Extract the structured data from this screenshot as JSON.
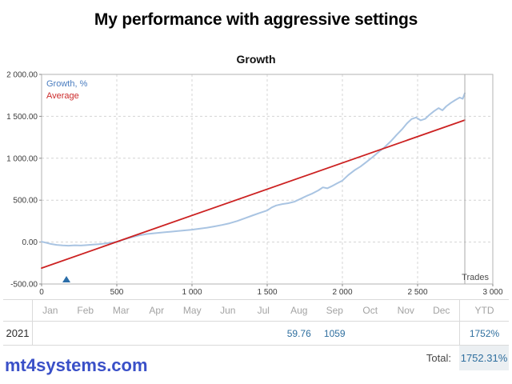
{
  "header": {
    "title": "My performance with aggressive settings"
  },
  "chart": {
    "title": "Growth",
    "legend": [
      {
        "label": "Growth, %",
        "color": "#4a7dc0"
      },
      {
        "label": "Average",
        "color": "#cc2b2b"
      }
    ],
    "x_axis_unit": "Trades"
  },
  "chart_data": {
    "type": "line",
    "title": "Growth",
    "xlabel": "Trades",
    "ylabel": "Growth, %",
    "xlim": [
      0,
      3000
    ],
    "ylim": [
      -500,
      2000
    ],
    "grid": true,
    "legend_position": "top-left",
    "x_ticks": [
      0,
      500,
      1000,
      1500,
      2000,
      2500,
      3000
    ],
    "x_tick_labels": [
      "0",
      "500",
      "1 000",
      "1 500",
      "2 000",
      "2 500",
      "3 000"
    ],
    "y_ticks": [
      -500,
      0,
      500,
      1000,
      1500,
      2000
    ],
    "y_tick_labels": [
      "-500.00",
      "0.00",
      "500.00",
      "1 000.00",
      "1 500.00",
      "2 000.00"
    ],
    "data_end_x": 2814,
    "series": [
      {
        "name": "Growth, %",
        "color": "#a9c4e2",
        "width": 2,
        "points": [
          [
            0,
            5
          ],
          [
            30,
            -8
          ],
          [
            60,
            -22
          ],
          [
            100,
            -33
          ],
          [
            140,
            -40
          ],
          [
            180,
            -43
          ],
          [
            220,
            -38
          ],
          [
            260,
            -41
          ],
          [
            300,
            -36
          ],
          [
            340,
            -31
          ],
          [
            380,
            -26
          ],
          [
            420,
            -17
          ],
          [
            460,
            -8
          ],
          [
            500,
            3
          ],
          [
            550,
            32
          ],
          [
            600,
            58
          ],
          [
            650,
            80
          ],
          [
            700,
            96
          ],
          [
            740,
            104
          ],
          [
            780,
            111
          ],
          [
            820,
            117
          ],
          [
            860,
            124
          ],
          [
            900,
            131
          ],
          [
            950,
            139
          ],
          [
            1000,
            148
          ],
          [
            1050,
            159
          ],
          [
            1100,
            172
          ],
          [
            1150,
            187
          ],
          [
            1200,
            204
          ],
          [
            1250,
            224
          ],
          [
            1300,
            251
          ],
          [
            1350,
            283
          ],
          [
            1400,
            316
          ],
          [
            1450,
            347
          ],
          [
            1500,
            377
          ],
          [
            1530,
            413
          ],
          [
            1560,
            437
          ],
          [
            1600,
            453
          ],
          [
            1640,
            464
          ],
          [
            1680,
            481
          ],
          [
            1720,
            514
          ],
          [
            1760,
            549
          ],
          [
            1800,
            579
          ],
          [
            1840,
            616
          ],
          [
            1870,
            653
          ],
          [
            1900,
            641
          ],
          [
            1930,
            667
          ],
          [
            1960,
            697
          ],
          [
            2000,
            734
          ],
          [
            2040,
            801
          ],
          [
            2080,
            856
          ],
          [
            2120,
            901
          ],
          [
            2160,
            956
          ],
          [
            2200,
            1012
          ],
          [
            2240,
            1073
          ],
          [
            2280,
            1131
          ],
          [
            2320,
            1199
          ],
          [
            2360,
            1278
          ],
          [
            2400,
            1352
          ],
          [
            2430,
            1417
          ],
          [
            2460,
            1468
          ],
          [
            2490,
            1487
          ],
          [
            2520,
            1452
          ],
          [
            2550,
            1469
          ],
          [
            2580,
            1519
          ],
          [
            2610,
            1563
          ],
          [
            2640,
            1598
          ],
          [
            2665,
            1572
          ],
          [
            2690,
            1618
          ],
          [
            2720,
            1659
          ],
          [
            2750,
            1694
          ],
          [
            2780,
            1724
          ],
          [
            2800,
            1709
          ],
          [
            2814,
            1776
          ]
        ]
      },
      {
        "name": "Average",
        "color": "#cc2222",
        "width": 1.8,
        "points": [
          [
            0,
            -310
          ],
          [
            2814,
            1455
          ]
        ]
      }
    ],
    "annotations": [
      {
        "type": "triangle-marker",
        "x": 165,
        "color": "#2a6da8"
      }
    ]
  },
  "table": {
    "months": [
      "Jan",
      "Feb",
      "Mar",
      "Apr",
      "May",
      "Jun",
      "Jul",
      "Aug",
      "Sep",
      "Oct",
      "Nov",
      "Dec"
    ],
    "ytd_label": "YTD",
    "rows": [
      {
        "year": "2021",
        "values": [
          "",
          "",
          "",
          "",
          "",
          "",
          "",
          "59.76",
          "1059",
          "",
          "",
          "",
          ""
        ],
        "ytd": "1752%"
      }
    ],
    "total_label": "Total:",
    "total_value": "1752.31%"
  },
  "watermark": {
    "text": "mt4systems.com",
    "color": "#3a50c8"
  },
  "colors": {
    "growth_line": "#a9c4e2",
    "average_line": "#cc2222",
    "table_value_blue": "#2f6f9f",
    "grid": "#d4d4d4",
    "plot_border": "#b3b3b3"
  }
}
